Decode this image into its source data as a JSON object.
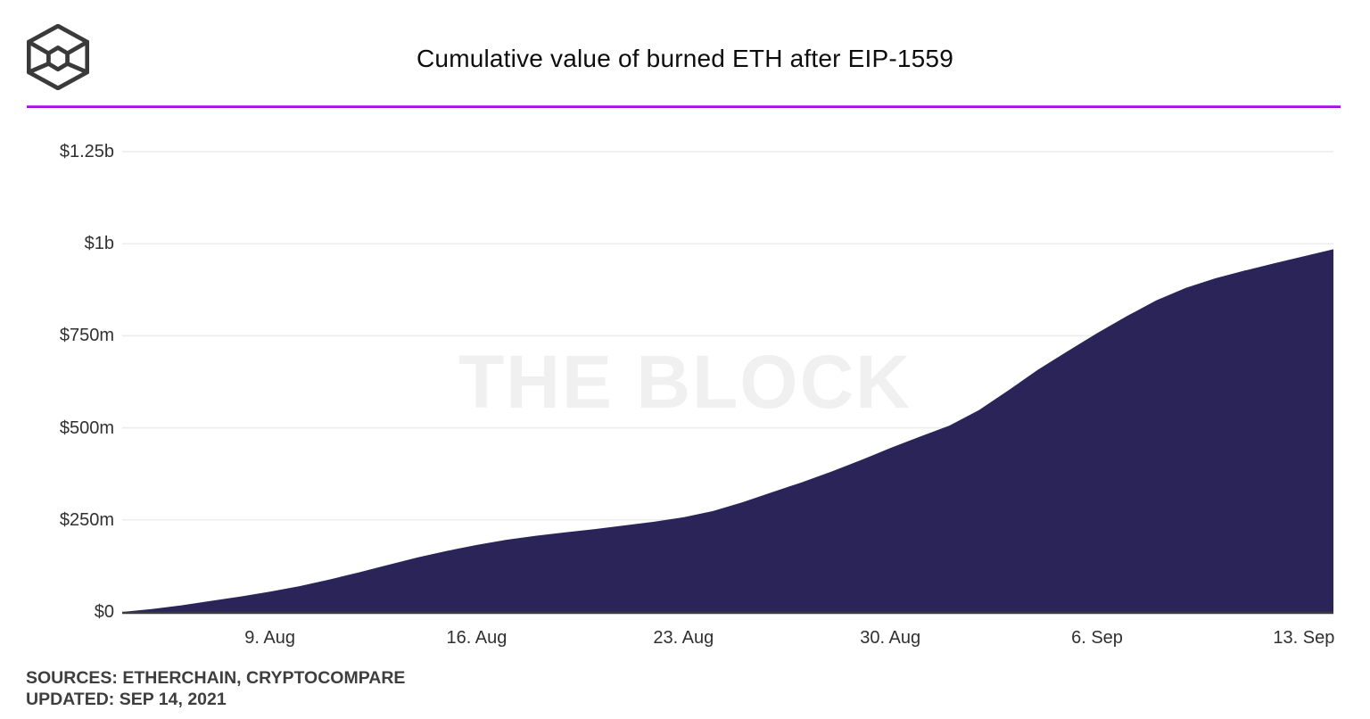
{
  "header": {
    "logo_name": "the-block-cube-logo",
    "title": "Cumulative value of burned ETH after EIP-1559"
  },
  "chart_data": {
    "type": "area",
    "title": "Cumulative value of burned ETH after EIP-1559",
    "watermark": "THE BLOCK",
    "units": "USD",
    "xlabel": "",
    "ylabel": "",
    "ylim_musd": [
      0,
      1250
    ],
    "grid": true,
    "area_color": "#2a2458",
    "baseline_color": "#3b3b3b",
    "gridline_color": "#ececec",
    "dates": [
      "Aug 4",
      "Aug 5",
      "Aug 6",
      "Aug 7",
      "Aug 8",
      "Aug 9",
      "Aug 10",
      "Aug 11",
      "Aug 12",
      "Aug 13",
      "Aug 14",
      "Aug 15",
      "Aug 16",
      "Aug 17",
      "Aug 18",
      "Aug 19",
      "Aug 20",
      "Aug 21",
      "Aug 22",
      "Aug 23",
      "Aug 24",
      "Aug 25",
      "Aug 26",
      "Aug 27",
      "Aug 28",
      "Aug 29",
      "Aug 30",
      "Aug 31",
      "Sep 1",
      "Sep 2",
      "Sep 3",
      "Sep 4",
      "Sep 5",
      "Sep 6",
      "Sep 7",
      "Sep 8",
      "Sep 9",
      "Sep 10",
      "Sep 11",
      "Sep 12",
      "Sep 13",
      "Sep 14"
    ],
    "values_musd": [
      0,
      8,
      18,
      30,
      42,
      55,
      70,
      88,
      107,
      128,
      148,
      166,
      182,
      196,
      207,
      216,
      225,
      235,
      245,
      257,
      274,
      298,
      325,
      352,
      381,
      412,
      445,
      476,
      506,
      548,
      602,
      658,
      708,
      757,
      803,
      846,
      880,
      906,
      927,
      947,
      966,
      985
    ],
    "y_ticks": [
      {
        "label": "$1.25b",
        "value_musd": 1250
      },
      {
        "label": "$1b",
        "value_musd": 1000
      },
      {
        "label": "$750m",
        "value_musd": 750
      },
      {
        "label": "$500m",
        "value_musd": 500
      },
      {
        "label": "$250m",
        "value_musd": 250
      },
      {
        "label": "$0",
        "value_musd": 0
      }
    ],
    "x_ticks": [
      {
        "label": "9. Aug",
        "date": "Aug 9"
      },
      {
        "label": "16. Aug",
        "date": "Aug 16"
      },
      {
        "label": "23. Aug",
        "date": "Aug 23"
      },
      {
        "label": "30. Aug",
        "date": "Aug 30"
      },
      {
        "label": "6. Sep",
        "date": "Sep 6"
      },
      {
        "label": "13. Sep",
        "date": "Sep 13"
      }
    ]
  },
  "footer": {
    "sources": "SOURCES: ETHERCHAIN, CRYPTOCOMPARE",
    "updated": "UPDATED: SEP 14, 2021"
  },
  "colors": {
    "divider": "#a603f0",
    "title_text": "#0d0d0d",
    "axis_text": "#303030",
    "footer_text": "#3e3e3e",
    "watermark_text": "#f0f0f0"
  }
}
